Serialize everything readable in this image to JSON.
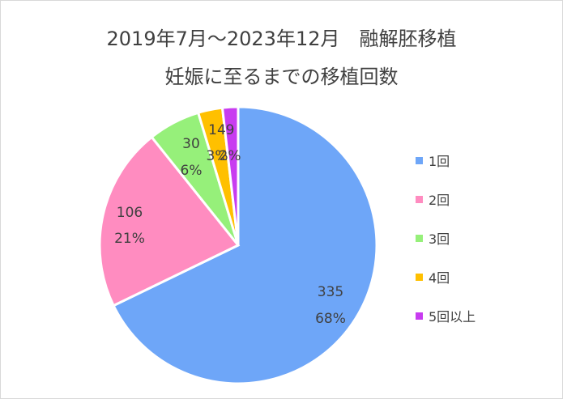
{
  "chart_data": {
    "type": "pie",
    "title": "2019年7月～2023年12月　融解胚移植",
    "subtitle": "妊娠に至るまでの移植回数",
    "slices": [
      {
        "label": "1回",
        "value": 335,
        "percent": "68%",
        "color": "#6EA6F8"
      },
      {
        "label": "2回",
        "value": 106,
        "percent": "21%",
        "color": "#FF8CC0"
      },
      {
        "label": "3回",
        "value": 30,
        "percent": "6%",
        "color": "#96F07A"
      },
      {
        "label": "4回",
        "value": 14,
        "percent": "3%",
        "color": "#FFC000"
      },
      {
        "label": "5回以上",
        "value": 9,
        "percent": "2%",
        "color": "#C83CF0"
      }
    ],
    "legend_position": "right"
  }
}
